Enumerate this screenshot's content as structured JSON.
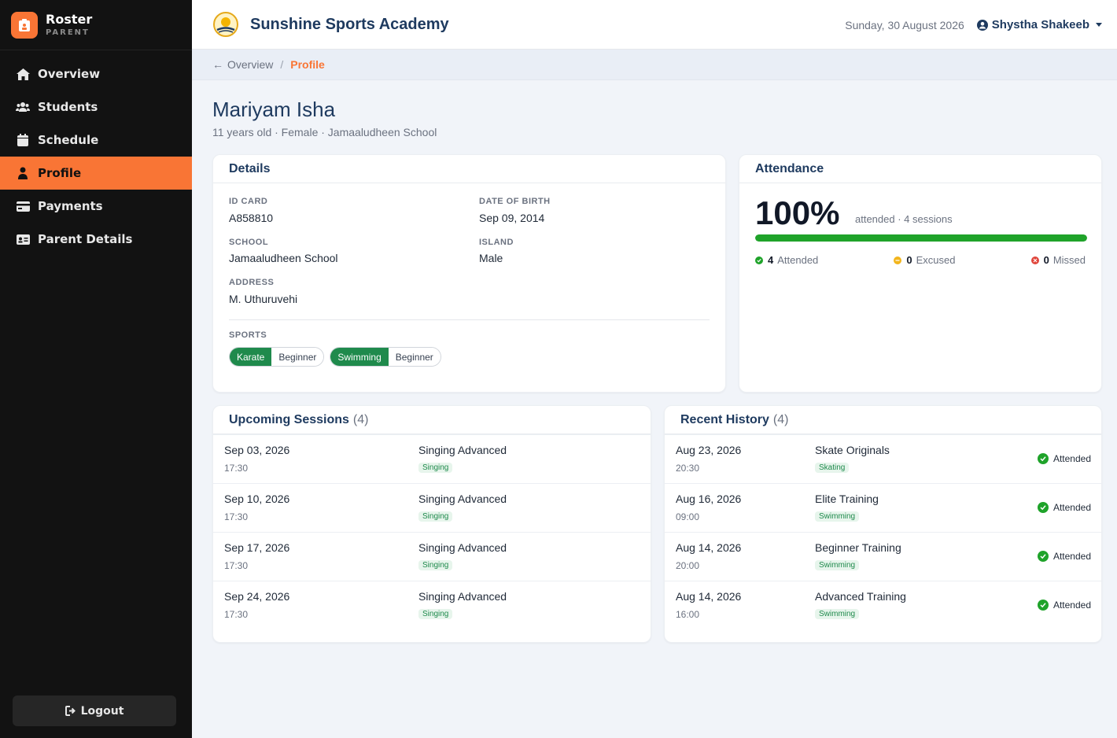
{
  "sidebar": {
    "brand_name": "Roster",
    "brand_role": "PARENT",
    "items": [
      {
        "label": "Overview",
        "icon": "home-icon"
      },
      {
        "label": "Students",
        "icon": "users-icon"
      },
      {
        "label": "Schedule",
        "icon": "calendar-icon"
      },
      {
        "label": "Profile",
        "icon": "user-icon",
        "active": true
      },
      {
        "label": "Payments",
        "icon": "credit-card-icon"
      },
      {
        "label": "Parent Details",
        "icon": "id-card-icon"
      }
    ],
    "logout_label": "Logout"
  },
  "header": {
    "academy_name": "Sunshine Sports Academy",
    "date": "Sunday, 30 August 2026",
    "user_name": "Shystha Shakeeb"
  },
  "breadcrumb": {
    "back_label": "Overview",
    "separator": "/",
    "current": "Profile"
  },
  "student": {
    "name": "Mariyam Isha",
    "meta": "11 years old · Female · Jamaaludheen School"
  },
  "details": {
    "title": "Details",
    "id_card_label": "ID CARD",
    "id_card": "A858810",
    "dob_label": "DATE OF BIRTH",
    "dob": "Sep 09, 2014",
    "school_label": "SCHOOL",
    "school": "Jamaaludheen School",
    "island_label": "ISLAND",
    "island": "Male",
    "address_label": "ADDRESS",
    "address": "M. Uthuruvehi",
    "sports_label": "SPORTS",
    "sports": [
      {
        "name": "Karate",
        "level": "Beginner"
      },
      {
        "name": "Swimming",
        "level": "Beginner"
      }
    ]
  },
  "attendance": {
    "title": "Attendance",
    "percent_text": "100%",
    "percent_value": 100,
    "subtitle": "attended · 4 sessions",
    "attended_count": "4",
    "attended_label": "Attended",
    "excused_count": "0",
    "excused_label": "Excused",
    "missed_count": "0",
    "missed_label": "Missed",
    "colors": {
      "attended": "#1fa32a",
      "excused": "#f2b51c",
      "missed": "#e0463c"
    }
  },
  "upcoming": {
    "title": "Upcoming Sessions",
    "count": "(4)",
    "rows": [
      {
        "date": "Sep 03, 2026",
        "time": "17:30",
        "title": "Singing Advanced",
        "tag": "Singing"
      },
      {
        "date": "Sep 10, 2026",
        "time": "17:30",
        "title": "Singing Advanced",
        "tag": "Singing"
      },
      {
        "date": "Sep 17, 2026",
        "time": "17:30",
        "title": "Singing Advanced",
        "tag": "Singing"
      },
      {
        "date": "Sep 24, 2026",
        "time": "17:30",
        "title": "Singing Advanced",
        "tag": "Singing"
      }
    ]
  },
  "history": {
    "title": "Recent History",
    "count": "(4)",
    "rows": [
      {
        "date": "Aug 23, 2026",
        "time": "20:30",
        "title": "Skate Originals",
        "tag": "Skating",
        "status": "Attended"
      },
      {
        "date": "Aug 16, 2026",
        "time": "09:00",
        "title": "Elite Training",
        "tag": "Swimming",
        "status": "Attended"
      },
      {
        "date": "Aug 14, 2026",
        "time": "20:00",
        "title": "Beginner Training",
        "tag": "Swimming",
        "status": "Attended"
      },
      {
        "date": "Aug 14, 2026",
        "time": "16:00",
        "title": "Advanced Training",
        "tag": "Swimming",
        "status": "Attended"
      }
    ]
  },
  "colors": {
    "accent": "#f97535",
    "brand_navy": "#1e3a5f",
    "success": "#1f8a4c"
  }
}
